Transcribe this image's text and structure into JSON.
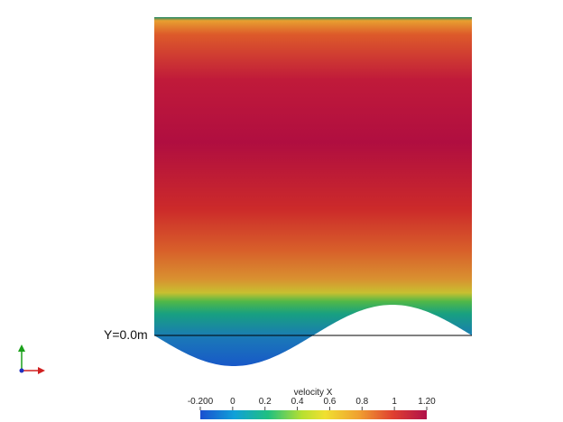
{
  "annotation": "Y=0.0m",
  "colorbar": {
    "title": "velocity X",
    "range": [
      -0.2,
      1.2
    ],
    "ticks": [
      {
        "value": -0.2,
        "label": "-0.200"
      },
      0,
      0.2,
      0.4,
      0.6,
      0.8,
      1,
      {
        "value": 1.2,
        "label": "1.20"
      }
    ]
  }
}
